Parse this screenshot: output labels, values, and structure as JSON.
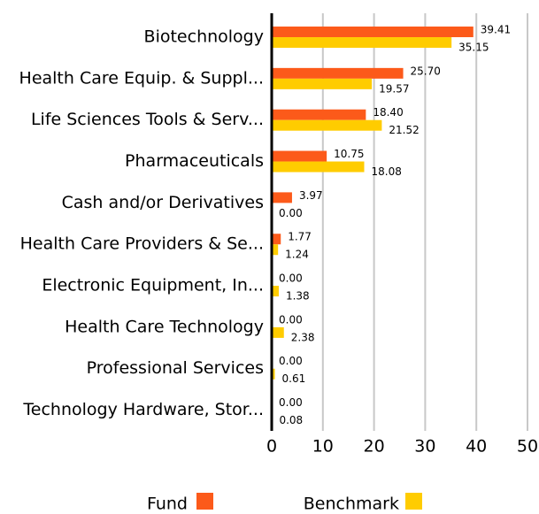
{
  "chart_data": {
    "type": "barh",
    "categories": [
      "Biotechnology",
      "Health Care Equip. & Suppl...",
      "Life Sciences Tools & Serv...",
      "Pharmaceuticals",
      "Cash and/or Derivatives",
      "Health Care Providers & Se...",
      "Electronic Equipment, In...",
      "Health Care Technology",
      "Professional Services",
      "Technology Hardware, Stor..."
    ],
    "series": [
      {
        "name": "Fund",
        "color": "#fc5a1a",
        "values": [
          39.41,
          25.7,
          18.4,
          10.75,
          3.97,
          1.77,
          0,
          0,
          0,
          0
        ],
        "value_labels": [
          "39.41",
          "25.70",
          "18.40",
          "10.75",
          "3.97",
          "1.77",
          "0.00",
          "0.00",
          "0.00",
          "0.00"
        ]
      },
      {
        "name": "Benchmark",
        "color": "#ffcc00",
        "values": [
          35.15,
          19.57,
          21.52,
          18.08,
          0,
          1.24,
          1.38,
          2.38,
          0.61,
          0.08
        ],
        "value_labels": [
          "35.15",
          "19.57",
          "21.52",
          "18.08",
          "0.00",
          "1.24",
          "1.38",
          "2.38",
          "0.61",
          "0.08"
        ]
      }
    ],
    "xlim": [
      0,
      50
    ],
    "xticks": [
      0,
      10,
      20,
      30,
      40,
      50
    ],
    "grid": true
  }
}
